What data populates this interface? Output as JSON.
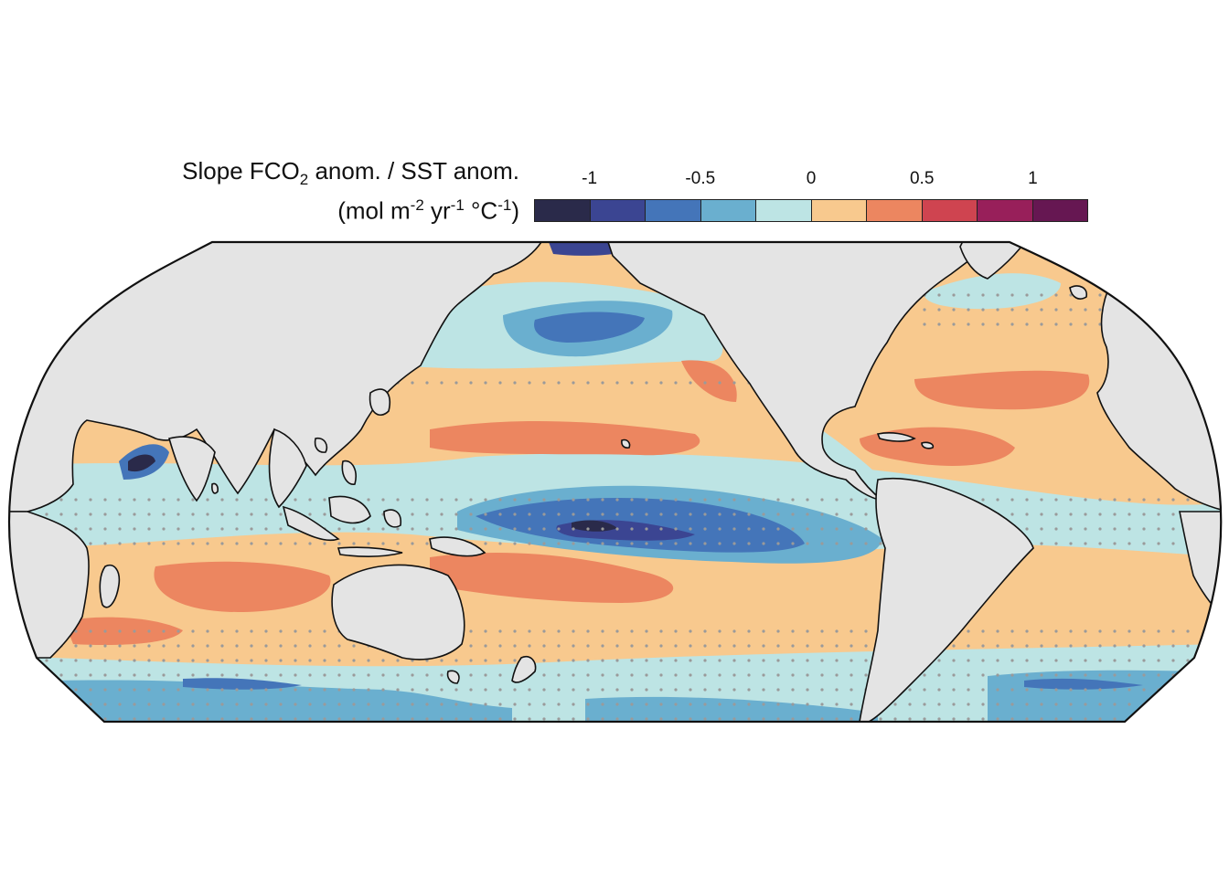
{
  "legend": {
    "title_line1_a": "Slope FCO",
    "title_line1_sub": "2",
    "title_line1_b": " anom. / SST anom.",
    "title_line2_a": "(mol m",
    "title_line2_sup1": "-2",
    "title_line2_b": " yr",
    "title_line2_sup2": "-1",
    "title_line2_c": " °C",
    "title_line2_sup3": "-1",
    "title_line2_d": ")",
    "ticks": [
      {
        "label": "-1",
        "value": -1
      },
      {
        "label": "-0.5",
        "value": -0.5
      },
      {
        "label": "0",
        "value": 0
      },
      {
        "label": "0.5",
        "value": 0.5
      },
      {
        "label": "1",
        "value": 1
      }
    ],
    "range": [
      -1.25,
      1.25
    ],
    "bins": [
      {
        "color": "#2a2a4a"
      },
      {
        "color": "#3b4592"
      },
      {
        "color": "#4475b9"
      },
      {
        "color": "#6aafcf"
      },
      {
        "color": "#bde4e4"
      },
      {
        "color": "#f8c98e"
      },
      {
        "color": "#ec8660"
      },
      {
        "color": "#cf4450"
      },
      {
        "color": "#981f5a"
      },
      {
        "color": "#661752"
      }
    ]
  },
  "map": {
    "projection": "Robinson (Pacific-centred)",
    "land_color": "#e4e4e4",
    "ocean_base_color": "#f8c98e",
    "stippling_color": "#9a9a9a"
  }
}
